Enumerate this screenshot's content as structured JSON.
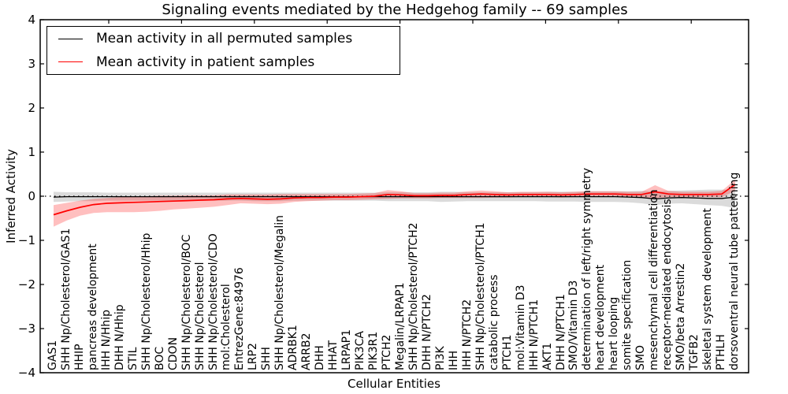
{
  "title": "Signaling events mediated by the Hedgehog family -- 69 samples",
  "axes": {
    "ylabel": "Inferred Activity",
    "xlabel": "Cellular Entities",
    "ytick_labels": [
      "4",
      "3",
      "2",
      "1",
      "0",
      "−1",
      "−2",
      "−3",
      "−4"
    ]
  },
  "legend": {
    "items": [
      {
        "label": "Mean activity in all permuted samples",
        "color": "#000000"
      },
      {
        "label": "Mean activity in patient samples",
        "color": "#ff0000"
      }
    ]
  },
  "chart_data": {
    "type": "line",
    "title": "Signaling events mediated by the Hedgehog family -- 69 samples",
    "xlabel": "Cellular Entities",
    "ylabel": "Inferred Activity",
    "ylim": [
      -4,
      4
    ],
    "grid": false,
    "legend_position": "upper left",
    "zero_reference_line": 0,
    "categories": [
      "GAS1",
      "SHH Np/Cholesterol/GAS1",
      "HHIP",
      "pancreas development",
      "IHH N/Hhip",
      "DHH N/Hhip",
      "STIL",
      "SHH Np/Cholesterol/Hhip",
      "BOC",
      "CDON",
      "SHH Np/Cholesterol/BOC",
      "SHH Np/Cholesterol",
      "SHH Np/Cholesterol/CDO",
      "mol:Cholesterol",
      "EntrezGene:84976",
      "LRP2",
      "SHH",
      "SHH Np/Cholesterol/Megalin",
      "ADRBK1",
      "ARRB2",
      "DHH",
      "HHAT",
      "LRPAP1",
      "PIK3CA",
      "PIK3R1",
      "PTCH2",
      "Megalin/LRPAP1",
      "SHH Np/Cholesterol/PTCH2",
      "DHH N/PTCH2",
      "PI3K",
      "IHH",
      "IHH N/PTCH2",
      "SHH Np/Cholesterol/PTCH1",
      "catabolic process",
      "PTCH1",
      "mol:Vitamin D3",
      "IHH N/PTCH1",
      "AKT1",
      "DHH N/PTCH1",
      "SMO/Vitamin D3",
      "determination of left/right symmetry",
      "heart development",
      "heart looping",
      "somite specification",
      "SMO",
      "mesenchymal cell differentiation",
      "receptor-mediated endocytosis",
      "SMO/beta Arrestin2",
      "TGFB2",
      "skeletal system development",
      "PTHLH",
      "dorsoventral neural tube patterning"
    ],
    "series": [
      {
        "name": "Mean activity in all permuted samples",
        "color": "#000000",
        "values": [
          -0.02,
          -0.01,
          -0.01,
          -0.01,
          -0.01,
          -0.01,
          -0.01,
          -0.01,
          -0.01,
          -0.01,
          -0.01,
          -0.01,
          -0.01,
          -0.01,
          -0.01,
          -0.01,
          -0.01,
          -0.01,
          -0.01,
          -0.01,
          -0.01,
          -0.01,
          -0.01,
          -0.01,
          -0.01,
          -0.01,
          -0.01,
          -0.01,
          -0.01,
          -0.01,
          -0.01,
          -0.01,
          -0.01,
          -0.01,
          -0.01,
          -0.01,
          -0.01,
          -0.01,
          -0.01,
          -0.01,
          -0.01,
          -0.01,
          -0.01,
          -0.02,
          -0.03,
          -0.06,
          -0.04,
          -0.03,
          -0.04,
          -0.05,
          -0.05,
          -0.02
        ]
      },
      {
        "name": "Mean activity in patient samples",
        "color": "#ff0000",
        "values": [
          -0.42,
          -0.33,
          -0.25,
          -0.19,
          -0.16,
          -0.15,
          -0.14,
          -0.13,
          -0.12,
          -0.11,
          -0.1,
          -0.09,
          -0.08,
          -0.06,
          -0.05,
          -0.06,
          -0.07,
          -0.06,
          -0.04,
          -0.03,
          -0.03,
          -0.02,
          -0.02,
          -0.01,
          0.0,
          0.04,
          0.03,
          0.01,
          0.01,
          0.02,
          0.02,
          0.04,
          0.05,
          0.04,
          0.03,
          0.04,
          0.04,
          0.04,
          0.03,
          0.04,
          0.05,
          0.05,
          0.05,
          0.04,
          0.04,
          0.1,
          0.05,
          0.04,
          0.04,
          0.04,
          0.05,
          0.27
        ]
      }
    ],
    "bands": [
      {
        "name": "permuted samples range",
        "color": "rgba(0,0,0,0.14)",
        "upper": [
          0.1,
          0.09,
          0.09,
          0.09,
          0.08,
          0.08,
          0.08,
          0.08,
          0.08,
          0.08,
          0.08,
          0.08,
          0.08,
          0.08,
          0.08,
          0.08,
          0.08,
          0.08,
          0.08,
          0.08,
          0.08,
          0.08,
          0.08,
          0.08,
          0.08,
          0.09,
          0.09,
          0.09,
          0.09,
          0.1,
          0.1,
          0.09,
          0.09,
          0.09,
          0.09,
          0.09,
          0.09,
          0.1,
          0.1,
          0.1,
          0.11,
          0.11,
          0.11,
          0.11,
          0.12,
          0.1,
          0.12,
          0.13,
          0.14,
          0.15,
          0.15,
          0.15
        ],
        "lower": [
          -0.13,
          -0.12,
          -0.11,
          -0.11,
          -0.1,
          -0.1,
          -0.1,
          -0.1,
          -0.1,
          -0.1,
          -0.1,
          -0.1,
          -0.1,
          -0.1,
          -0.1,
          -0.11,
          -0.11,
          -0.11,
          -0.1,
          -0.1,
          -0.1,
          -0.1,
          -0.1,
          -0.1,
          -0.1,
          -0.11,
          -0.11,
          -0.11,
          -0.11,
          -0.13,
          -0.12,
          -0.11,
          -0.11,
          -0.11,
          -0.11,
          -0.11,
          -0.11,
          -0.12,
          -0.12,
          -0.12,
          -0.13,
          -0.13,
          -0.13,
          -0.14,
          -0.16,
          -0.2,
          -0.17,
          -0.16,
          -0.18,
          -0.2,
          -0.22,
          -0.27
        ]
      },
      {
        "name": "patient samples range",
        "color": "rgba(255,0,0,0.25)",
        "upper": [
          -0.2,
          -0.15,
          -0.1,
          -0.06,
          -0.04,
          -0.02,
          -0.01,
          0.0,
          0.01,
          0.01,
          0.02,
          0.02,
          0.02,
          0.04,
          0.04,
          0.04,
          0.04,
          0.05,
          0.05,
          0.05,
          0.05,
          0.05,
          0.05,
          0.06,
          0.07,
          0.14,
          0.11,
          0.07,
          0.07,
          0.08,
          0.08,
          0.11,
          0.13,
          0.11,
          0.09,
          0.1,
          0.1,
          0.1,
          0.09,
          0.1,
          0.11,
          0.11,
          0.11,
          0.1,
          0.1,
          0.25,
          0.12,
          0.1,
          0.1,
          0.1,
          0.12,
          0.38
        ],
        "lower": [
          -0.69,
          -0.55,
          -0.44,
          -0.38,
          -0.36,
          -0.36,
          -0.36,
          -0.35,
          -0.33,
          -0.3,
          -0.28,
          -0.26,
          -0.24,
          -0.2,
          -0.16,
          -0.17,
          -0.18,
          -0.17,
          -0.13,
          -0.11,
          -0.1,
          -0.09,
          -0.09,
          -0.08,
          -0.07,
          -0.06,
          -0.05,
          -0.05,
          -0.05,
          -0.04,
          -0.04,
          -0.04,
          -0.04,
          -0.03,
          -0.03,
          -0.02,
          -0.02,
          -0.02,
          -0.03,
          -0.02,
          -0.01,
          -0.01,
          -0.01,
          -0.02,
          -0.02,
          -0.05,
          -0.02,
          -0.02,
          -0.02,
          -0.02,
          -0.02,
          0.12
        ]
      }
    ]
  }
}
